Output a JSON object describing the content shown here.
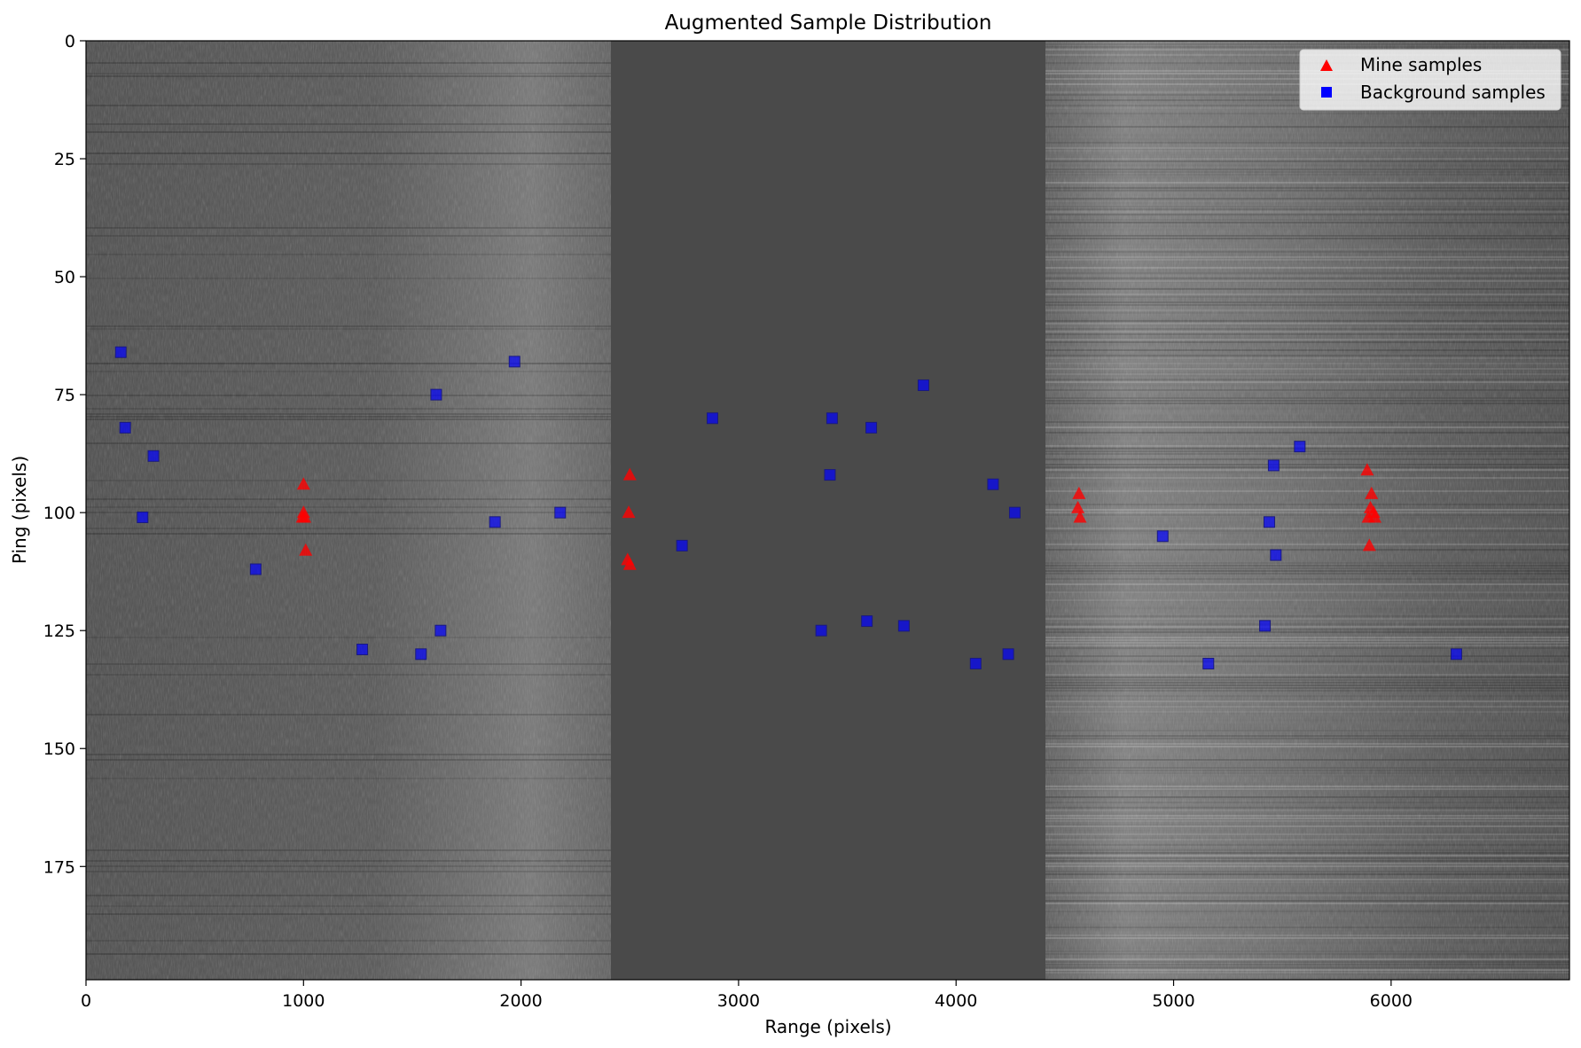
{
  "chart_data": {
    "type": "scatter",
    "title": "Augmented Sample Distribution",
    "xlabel": "Range (pixels)",
    "ylabel": "Ping (pixels)",
    "xlim": [
      0,
      6820
    ],
    "ylim": [
      0,
      199
    ],
    "y_inverted": true,
    "xticks": [
      0,
      1000,
      2000,
      3000,
      4000,
      5000,
      6000
    ],
    "yticks": [
      0,
      25,
      50,
      75,
      100,
      125,
      150,
      175
    ],
    "background": "grayscale side-scan sonar image",
    "legend_position": "top-right",
    "series": [
      {
        "name": "Mine samples",
        "marker": "triangle",
        "color": "#ff0000",
        "points": [
          [
            1000,
            94
          ],
          [
            1000,
            100
          ],
          [
            995,
            101
          ],
          [
            1005,
            101
          ],
          [
            1010,
            108
          ],
          [
            2500,
            92
          ],
          [
            2495,
            100
          ],
          [
            2490,
            110
          ],
          [
            2500,
            111
          ],
          [
            4565,
            96
          ],
          [
            4560,
            99
          ],
          [
            4570,
            101
          ],
          [
            5890,
            91
          ],
          [
            5910,
            96
          ],
          [
            5905,
            99
          ],
          [
            5920,
            100
          ],
          [
            5895,
            101
          ],
          [
            5925,
            101
          ],
          [
            5900,
            107
          ]
        ]
      },
      {
        "name": "Background samples",
        "marker": "square",
        "color": "#0000ff",
        "points": [
          [
            160,
            66
          ],
          [
            180,
            82
          ],
          [
            310,
            88
          ],
          [
            260,
            101
          ],
          [
            780,
            112
          ],
          [
            1270,
            129
          ],
          [
            1540,
            130
          ],
          [
            1610,
            75
          ],
          [
            1630,
            125
          ],
          [
            1880,
            102
          ],
          [
            1970,
            68
          ],
          [
            2180,
            100
          ],
          [
            2740,
            107
          ],
          [
            2880,
            80
          ],
          [
            3380,
            125
          ],
          [
            3420,
            92
          ],
          [
            3430,
            80
          ],
          [
            3590,
            123
          ],
          [
            3610,
            82
          ],
          [
            3760,
            124
          ],
          [
            3850,
            73
          ],
          [
            4090,
            132
          ],
          [
            4170,
            94
          ],
          [
            4240,
            130
          ],
          [
            4270,
            100
          ],
          [
            4950,
            105
          ],
          [
            5160,
            132
          ],
          [
            5420,
            124
          ],
          [
            5440,
            102
          ],
          [
            5460,
            90
          ],
          [
            5470,
            109
          ],
          [
            5580,
            86
          ],
          [
            6300,
            130
          ]
        ]
      }
    ]
  },
  "colors": {
    "mine": "#ff0000",
    "background": "#0000ff",
    "sonar_dark": "#4a4a4a"
  }
}
